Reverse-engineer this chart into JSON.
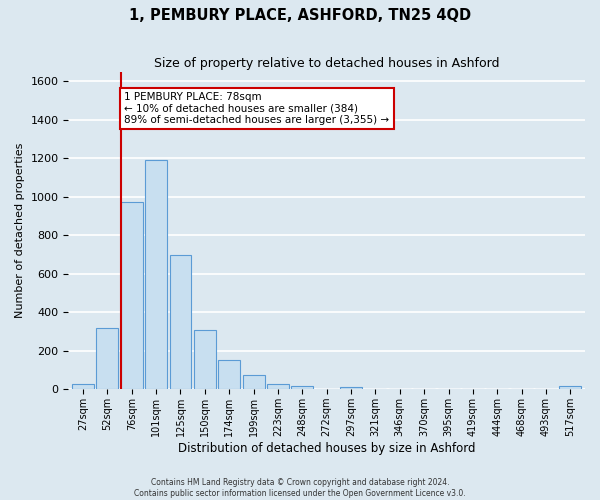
{
  "title": "1, PEMBURY PLACE, ASHFORD, TN25 4QD",
  "subtitle": "Size of property relative to detached houses in Ashford",
  "xlabel": "Distribution of detached houses by size in Ashford",
  "ylabel": "Number of detached properties",
  "bin_labels": [
    "27sqm",
    "52sqm",
    "76sqm",
    "101sqm",
    "125sqm",
    "150sqm",
    "174sqm",
    "199sqm",
    "223sqm",
    "248sqm",
    "272sqm",
    "297sqm",
    "321sqm",
    "346sqm",
    "370sqm",
    "395sqm",
    "419sqm",
    "444sqm",
    "468sqm",
    "493sqm",
    "517sqm"
  ],
  "bar_heights": [
    30,
    320,
    975,
    1190,
    700,
    310,
    150,
    75,
    30,
    15,
    0,
    10,
    0,
    0,
    0,
    0,
    0,
    0,
    0,
    0,
    15
  ],
  "bar_color": "#c8dff0",
  "bar_edge_color": "#5b9bd5",
  "vline_color": "#cc0000",
  "ylim": [
    0,
    1650
  ],
  "yticks": [
    0,
    200,
    400,
    600,
    800,
    1000,
    1200,
    1400,
    1600
  ],
  "annotation_title": "1 PEMBURY PLACE: 78sqm",
  "annotation_line1": "← 10% of detached houses are smaller (384)",
  "annotation_line2": "89% of semi-detached houses are larger (3,355) →",
  "annotation_box_color": "#ffffff",
  "annotation_box_edge_color": "#cc0000",
  "footer_line1": "Contains HM Land Registry data © Crown copyright and database right 2024.",
  "footer_line2": "Contains public sector information licensed under the Open Government Licence v3.0.",
  "background_color": "#dce8f0",
  "plot_bg_color": "#dce8f0",
  "grid_color": "#ffffff"
}
